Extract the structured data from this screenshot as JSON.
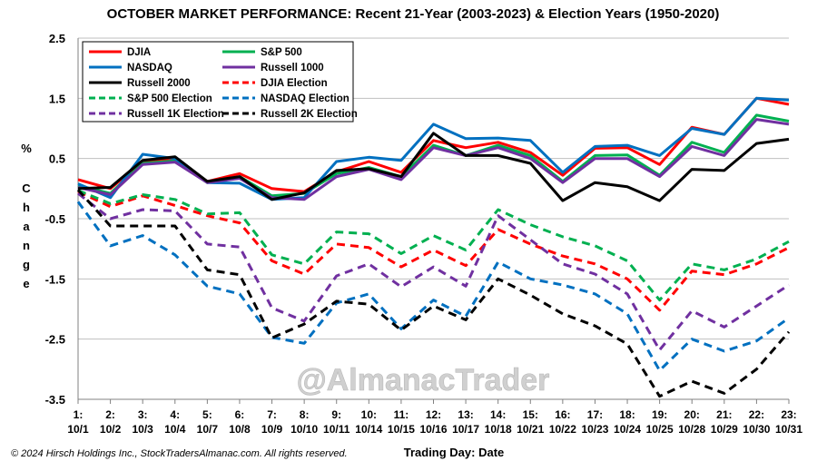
{
  "chart_data": {
    "type": "line",
    "title": "OCTOBER MARKET PERFORMANCE: Recent 21-Year (2003-2023) & Election Years (1950-2020)",
    "ylabel": "% Change",
    "ylabel_chars": [
      "%",
      "C",
      "h",
      "a",
      "n",
      "g",
      "e"
    ],
    "xlabel": "Trading Day: Date",
    "copyright": "© 2024 Hirsch Holdings Inc., StockTradersAlmanac.com. All rights reserved.",
    "watermark": "@AlmanacTrader",
    "ylim": [
      -3.5,
      2.5
    ],
    "yticks": [
      2.5,
      1.5,
      0.5,
      -0.5,
      -1.5,
      -2.5,
      -3.5
    ],
    "grid": true,
    "legend_position": "top-left",
    "x_day": [
      "1:",
      "2:",
      "3:",
      "4:",
      "5:",
      "6:",
      "7:",
      "8:",
      "9:",
      "10:",
      "11:",
      "12:",
      "13:",
      "14:",
      "15:",
      "16:",
      "17:",
      "18:",
      "19:",
      "20:",
      "21:",
      "22:",
      "23:"
    ],
    "x_date": [
      "10/1",
      "10/2",
      "10/3",
      "10/4",
      "10/7",
      "10/8",
      "10/9",
      "10/10",
      "10/11",
      "10/14",
      "10/15",
      "10/16",
      "10/17",
      "10/18",
      "10/21",
      "10/22",
      "10/23",
      "10/24",
      "10/25",
      "10/28",
      "10/29",
      "10/30",
      "10/31"
    ],
    "series": [
      {
        "name": "DJIA",
        "color": "#ff0000",
        "dash": "solid",
        "values": [
          0.15,
          0.0,
          0.45,
          0.48,
          0.12,
          0.25,
          0.0,
          -0.05,
          0.28,
          0.45,
          0.27,
          0.8,
          0.68,
          0.77,
          0.6,
          0.22,
          0.67,
          0.68,
          0.4,
          1.02,
          0.9,
          1.5,
          1.4
        ]
      },
      {
        "name": "S&P 500",
        "color": "#00b050",
        "dash": "solid",
        "values": [
          0.05,
          -0.08,
          0.42,
          0.46,
          0.1,
          0.2,
          -0.12,
          -0.08,
          0.25,
          0.35,
          0.2,
          0.72,
          0.55,
          0.72,
          0.55,
          0.12,
          0.55,
          0.56,
          0.22,
          0.77,
          0.6,
          1.22,
          1.12
        ]
      },
      {
        "name": "NASDAQ",
        "color": "#0070c0",
        "dash": "solid",
        "values": [
          0.08,
          -0.15,
          0.57,
          0.5,
          0.1,
          0.09,
          -0.18,
          -0.15,
          0.45,
          0.52,
          0.47,
          1.07,
          0.83,
          0.84,
          0.8,
          0.27,
          0.7,
          0.72,
          0.55,
          1.0,
          0.9,
          1.5,
          1.47
        ]
      },
      {
        "name": "Russell 1000",
        "color": "#7030a0",
        "dash": "solid",
        "values": [
          0.02,
          -0.1,
          0.4,
          0.44,
          0.1,
          0.17,
          -0.15,
          -0.18,
          0.2,
          0.32,
          0.15,
          0.68,
          0.55,
          0.68,
          0.5,
          0.1,
          0.5,
          0.5,
          0.2,
          0.7,
          0.55,
          1.15,
          1.07
        ]
      },
      {
        "name": "Russell 2000",
        "color": "#000000",
        "dash": "solid",
        "values": [
          0.0,
          0.02,
          0.47,
          0.53,
          0.12,
          0.2,
          -0.18,
          -0.07,
          0.3,
          0.33,
          0.2,
          0.92,
          0.55,
          0.55,
          0.42,
          -0.2,
          0.1,
          0.03,
          -0.2,
          0.32,
          0.3,
          0.75,
          0.82
        ]
      },
      {
        "name": "DJIA Election",
        "color": "#ff0000",
        "dash": "dash",
        "values": [
          -0.05,
          -0.3,
          -0.12,
          -0.28,
          -0.45,
          -0.57,
          -1.2,
          -1.42,
          -0.92,
          -0.98,
          -1.3,
          -1.02,
          -1.28,
          -0.68,
          -0.92,
          -1.12,
          -1.25,
          -1.5,
          -2.02,
          -1.37,
          -1.43,
          -1.25,
          -0.98
        ]
      },
      {
        "name": "S&P 500 Election",
        "color": "#00b050",
        "dash": "dash",
        "values": [
          -0.03,
          -0.25,
          -0.1,
          -0.18,
          -0.42,
          -0.4,
          -1.1,
          -1.25,
          -0.72,
          -0.75,
          -1.08,
          -0.78,
          -1.02,
          -0.35,
          -0.6,
          -0.8,
          -0.95,
          -1.2,
          -1.85,
          -1.25,
          -1.35,
          -1.17,
          -0.88
        ]
      },
      {
        "name": "NASDAQ Election",
        "color": "#0070c0",
        "dash": "dash",
        "values": [
          -0.22,
          -0.95,
          -0.78,
          -1.1,
          -1.62,
          -1.75,
          -2.47,
          -2.57,
          -1.9,
          -1.75,
          -2.33,
          -1.85,
          -2.12,
          -1.22,
          -1.5,
          -1.6,
          -1.75,
          -2.08,
          -3.02,
          -2.5,
          -2.7,
          -2.53,
          -2.15
        ]
      },
      {
        "name": "Russell 1K Election",
        "color": "#7030a0",
        "dash": "dash",
        "values": [
          -0.08,
          -0.5,
          -0.35,
          -0.37,
          -0.92,
          -0.97,
          -1.98,
          -2.2,
          -1.45,
          -1.25,
          -1.63,
          -1.3,
          -1.62,
          -0.45,
          -0.85,
          -1.25,
          -1.42,
          -1.75,
          -2.68,
          -2.03,
          -2.3,
          -1.95,
          -1.6
        ]
      },
      {
        "name": "Russell 2K Election",
        "color": "#000000",
        "dash": "dash",
        "values": [
          -0.02,
          -0.62,
          -0.62,
          -0.62,
          -1.35,
          -1.43,
          -2.48,
          -2.25,
          -1.87,
          -1.92,
          -2.35,
          -1.95,
          -2.18,
          -1.5,
          -1.77,
          -2.08,
          -2.28,
          -2.58,
          -3.45,
          -3.2,
          -3.4,
          -3.0,
          -2.38
        ]
      }
    ]
  }
}
